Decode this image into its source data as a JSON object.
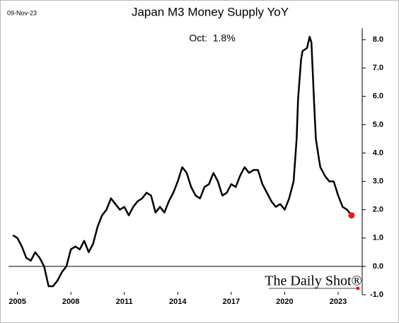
{
  "chart_data": {
    "type": "line",
    "title": "Japan M3 Money Supply YoY",
    "date_label": "09-Nov-23",
    "annotation": "Oct:  1.8%",
    "watermark": "The Daily Shot®",
    "x": [
      2004.75,
      2005.0,
      2005.25,
      2005.5,
      2005.75,
      2006.0,
      2006.25,
      2006.5,
      2006.75,
      2007.0,
      2007.25,
      2007.5,
      2007.75,
      2008.0,
      2008.25,
      2008.5,
      2008.75,
      2009.0,
      2009.25,
      2009.5,
      2009.75,
      2010.0,
      2010.25,
      2010.5,
      2010.75,
      2011.0,
      2011.25,
      2011.5,
      2011.75,
      2012.0,
      2012.25,
      2012.5,
      2012.75,
      2013.0,
      2013.25,
      2013.5,
      2013.75,
      2014.0,
      2014.25,
      2014.5,
      2014.75,
      2015.0,
      2015.25,
      2015.5,
      2015.75,
      2016.0,
      2016.25,
      2016.5,
      2016.75,
      2017.0,
      2017.25,
      2017.5,
      2017.75,
      2018.0,
      2018.25,
      2018.5,
      2018.75,
      2019.0,
      2019.25,
      2019.5,
      2019.75,
      2020.0,
      2020.25,
      2020.5,
      2020.67,
      2020.75,
      2020.92,
      2021.0,
      2021.25,
      2021.4,
      2021.5,
      2021.67,
      2021.75,
      2021.92,
      2022.0,
      2022.25,
      2022.5,
      2022.75,
      2023.0,
      2023.25,
      2023.5,
      2023.75
    ],
    "series": [
      {
        "name": "Japan M3 YoY",
        "color": "#000000",
        "values": [
          1.1,
          1.0,
          0.7,
          0.3,
          0.2,
          0.5,
          0.3,
          0.0,
          -0.7,
          -0.7,
          -0.5,
          -0.2,
          0.0,
          0.6,
          0.7,
          0.6,
          0.9,
          0.5,
          0.8,
          1.4,
          1.8,
          2.0,
          2.4,
          2.2,
          2.0,
          2.1,
          1.8,
          2.1,
          2.3,
          2.4,
          2.6,
          2.5,
          1.9,
          2.1,
          1.9,
          2.3,
          2.6,
          3.0,
          3.5,
          3.3,
          2.8,
          2.5,
          2.4,
          2.8,
          2.9,
          3.3,
          3.0,
          2.5,
          2.6,
          2.9,
          2.8,
          3.2,
          3.5,
          3.3,
          3.4,
          3.4,
          2.9,
          2.6,
          2.3,
          2.1,
          2.2,
          2.0,
          2.4,
          3.0,
          4.5,
          5.9,
          7.3,
          7.6,
          7.7,
          8.1,
          7.9,
          5.5,
          4.5,
          3.8,
          3.5,
          3.2,
          3.0,
          3.0,
          2.5,
          2.1,
          2.0,
          1.8
        ]
      }
    ],
    "marker_color": "#e8191e",
    "xlim": [
      2004.5,
      2024.35
    ],
    "xticks": [
      2005,
      2008,
      2011,
      2014,
      2017,
      2020,
      2023
    ],
    "ylim": [
      -1.0,
      8.9
    ],
    "yticks": [
      {
        "value": -1,
        "label": "-1.0"
      },
      {
        "value": 0,
        "label": "0.0"
      },
      {
        "value": 1,
        "label": "1.0"
      },
      {
        "value": 2,
        "label": "2.0"
      },
      {
        "value": 3,
        "label": "3.0"
      },
      {
        "value": 4,
        "label": "4.0"
      },
      {
        "value": 5,
        "label": "5.0"
      },
      {
        "value": 6,
        "label": "6.0"
      },
      {
        "value": 7,
        "label": "7.0"
      },
      {
        "value": 8,
        "label": "8.0"
      }
    ]
  }
}
